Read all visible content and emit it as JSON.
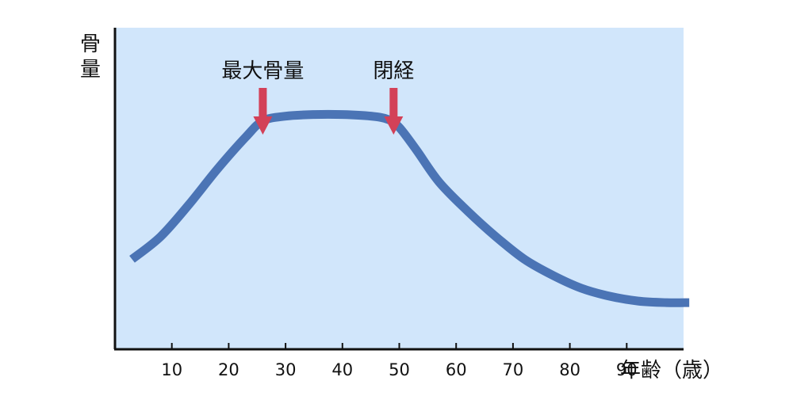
{
  "chart_data": {
    "type": "line",
    "title": "",
    "xlabel": "年齢（歳）",
    "ylabel": "骨量",
    "xlim": [
      0,
      100
    ],
    "ylim": [
      0,
      100
    ],
    "x_ticks": [
      10,
      20,
      30,
      40,
      50,
      60,
      70,
      80,
      90
    ],
    "grid": false,
    "legend": "none",
    "colors": {
      "plot_background": "#d1e6fb",
      "curve": "#4b74b5",
      "arrow": "#d34158",
      "axis": "#111111"
    },
    "series": [
      {
        "x": [
          3,
          8,
          13,
          18,
          23,
          26,
          30,
          35,
          40,
          45,
          48,
          50,
          53,
          57,
          62,
          67,
          72,
          77,
          82,
          87,
          92,
          97,
          101
        ],
        "values": [
          28,
          35,
          45,
          56,
          66,
          71,
          72.5,
          73,
          73,
          72.5,
          71.5,
          69,
          62,
          52,
          43,
          35,
          28,
          23,
          19,
          16.5,
          15,
          14.5,
          14.5
        ]
      }
    ],
    "annotations": [
      {
        "label": "最大骨量",
        "x": 26
      },
      {
        "label": "閉経",
        "x": 49
      }
    ]
  }
}
